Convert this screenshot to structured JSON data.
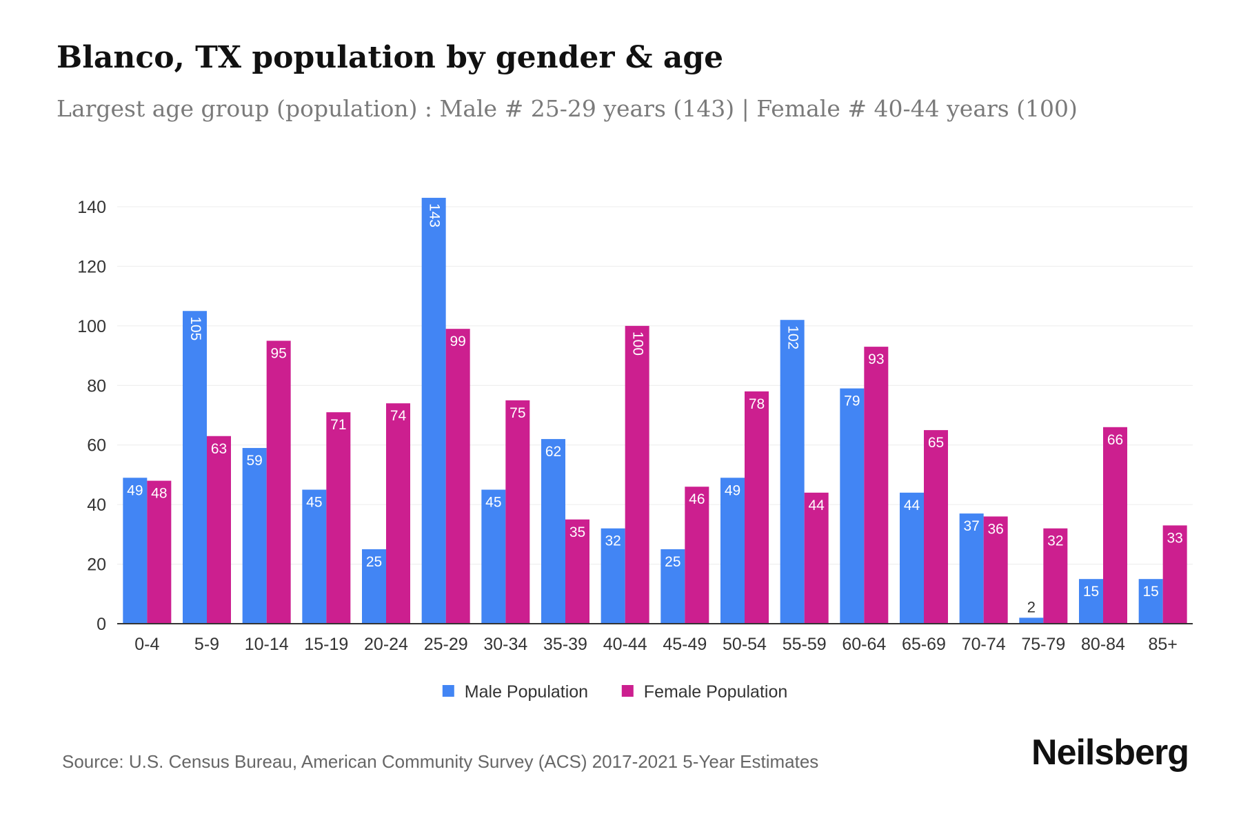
{
  "title": "Blanco, TX population by gender & age",
  "subtitle": "Largest age group (population) : Male # 25-29 years (143) | Female # 40-44 years (100)",
  "source": "Source: U.S. Census Bureau, American Community Survey (ACS) 2017-2021 5-Year Estimates",
  "brand": "Neilsberg",
  "colors": {
    "male": "#4285f4",
    "female": "#cc1f8f",
    "grid": "#ececec",
    "axis": "#333333",
    "tick_text": "#333333"
  },
  "chart_data": {
    "type": "bar",
    "categories": [
      "0-4",
      "5-9",
      "10-14",
      "15-19",
      "20-24",
      "25-29",
      "30-34",
      "35-39",
      "40-44",
      "45-49",
      "50-54",
      "55-59",
      "60-64",
      "65-69",
      "70-74",
      "75-79",
      "80-84",
      "85+"
    ],
    "series": [
      {
        "name": "Male Population",
        "color": "#4285f4",
        "values": [
          49,
          105,
          59,
          45,
          25,
          143,
          45,
          62,
          32,
          25,
          49,
          102,
          79,
          44,
          37,
          2,
          15,
          15
        ]
      },
      {
        "name": "Female Population",
        "color": "#cc1f8f",
        "values": [
          48,
          63,
          95,
          71,
          74,
          99,
          75,
          35,
          100,
          46,
          78,
          44,
          93,
          65,
          36,
          32,
          66,
          33
        ]
      }
    ],
    "ylim": [
      0,
      140
    ],
    "yticks": [
      0,
      20,
      40,
      60,
      80,
      100,
      120,
      140
    ],
    "grid": true,
    "legend": "bottom-center"
  }
}
